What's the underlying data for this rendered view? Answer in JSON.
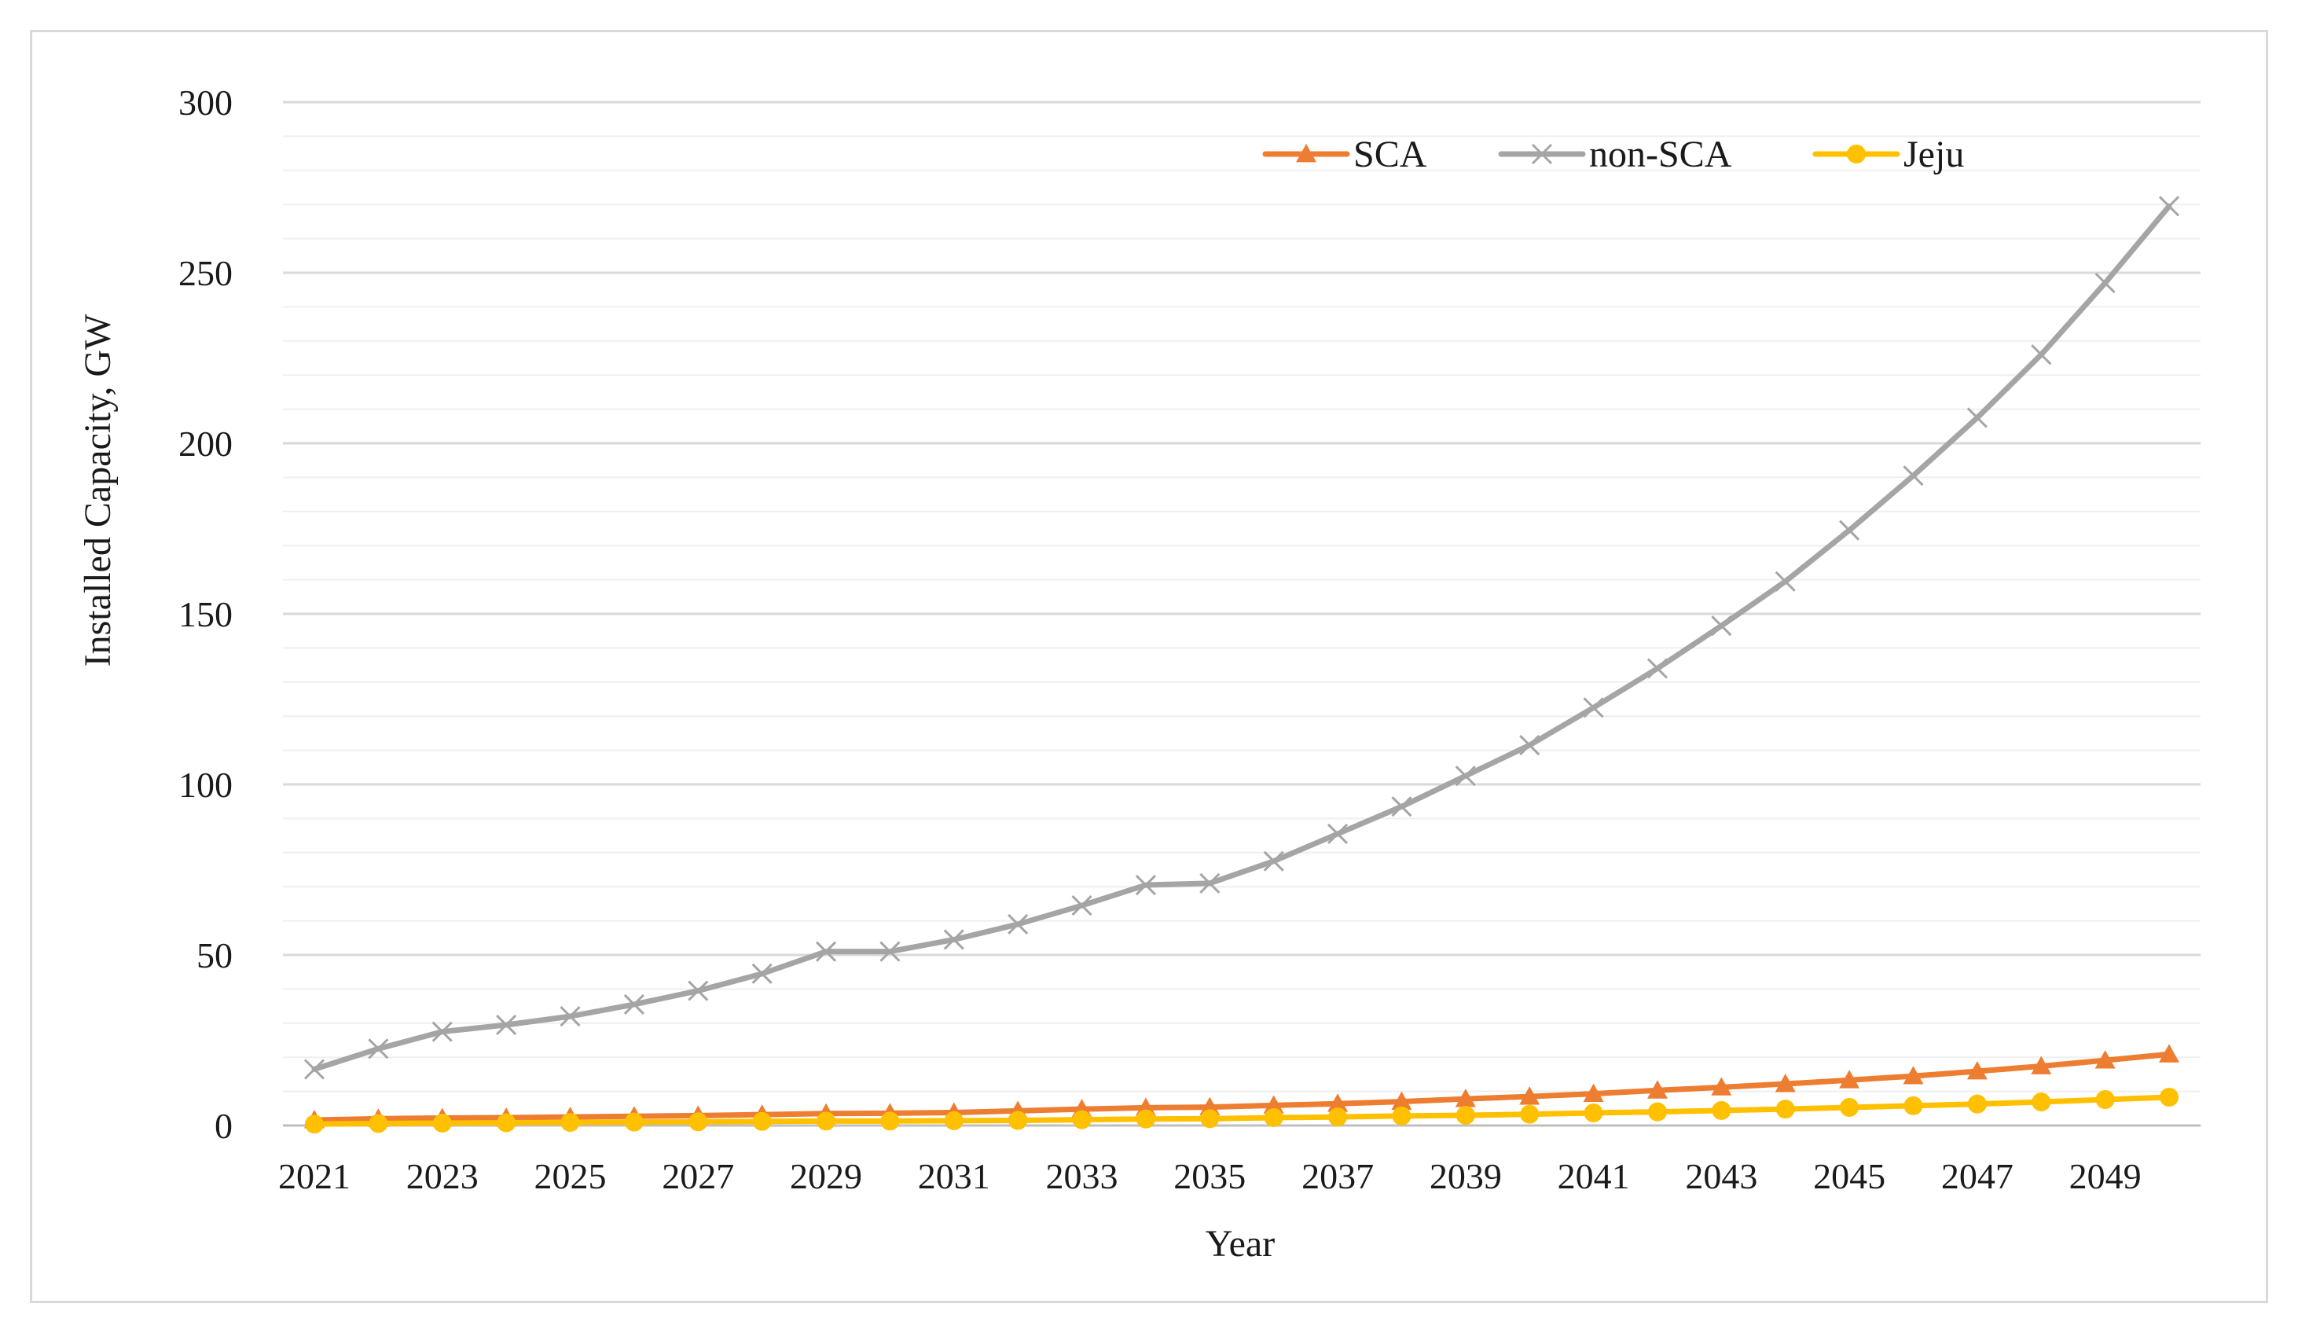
{
  "chart_data": {
    "type": "line",
    "title": "",
    "xlabel": "Year",
    "ylabel": "Installed Capacity, GW",
    "ylim": [
      0,
      300
    ],
    "yticks": [
      "0",
      "50",
      "100",
      "150",
      "200",
      "250",
      "300"
    ],
    "xtick_labels": [
      "2021",
      "2023",
      "2025",
      "2027",
      "2029",
      "2031",
      "2033",
      "2035",
      "2037",
      "2039",
      "2041",
      "2043",
      "2045",
      "2047",
      "2049"
    ],
    "x": [
      2021,
      2022,
      2023,
      2024,
      2025,
      2026,
      2027,
      2028,
      2029,
      2030,
      2031,
      2032,
      2033,
      2034,
      2035,
      2036,
      2037,
      2038,
      2039,
      2040,
      2041,
      2042,
      2043,
      2044,
      2045,
      2046,
      2047,
      2048,
      2049,
      2050
    ],
    "legend_position": "top-right",
    "series": [
      {
        "name": "SCA",
        "color": "#ed7d31",
        "marker": "triangle",
        "values": [
          1.6,
          2.0,
          2.2,
          2.3,
          2.5,
          2.7,
          2.9,
          3.2,
          3.5,
          3.6,
          3.8,
          4.3,
          4.8,
          5.2,
          5.4,
          5.9,
          6.4,
          7.0,
          7.8,
          8.5,
          9.3,
          10.3,
          11.2,
          12.2,
          13.3,
          14.5,
          15.9,
          17.4,
          19.1,
          20.9
        ]
      },
      {
        "name": "non-SCA",
        "color": "#a5a5a5",
        "marker": "x",
        "values": [
          16.5,
          22.5,
          27.5,
          29.5,
          32.0,
          35.5,
          39.5,
          44.5,
          51.0,
          51.0,
          54.5,
          59.0,
          64.5,
          70.5,
          71.0,
          77.5,
          85.5,
          93.5,
          102.5,
          111.5,
          122.5,
          134.0,
          146.5,
          159.5,
          174.5,
          190.5,
          207.5,
          226.0,
          247.0,
          269.5
        ]
      },
      {
        "name": "Jeju",
        "color": "#ffc000",
        "marker": "circle",
        "values": [
          0.4,
          0.6,
          0.7,
          0.8,
          0.9,
          1.0,
          1.1,
          1.2,
          1.3,
          1.3,
          1.4,
          1.5,
          1.7,
          1.9,
          2.0,
          2.3,
          2.5,
          2.8,
          3.0,
          3.3,
          3.7,
          4.0,
          4.4,
          4.8,
          5.3,
          5.8,
          6.3,
          6.9,
          7.6,
          8.3
        ]
      }
    ]
  }
}
